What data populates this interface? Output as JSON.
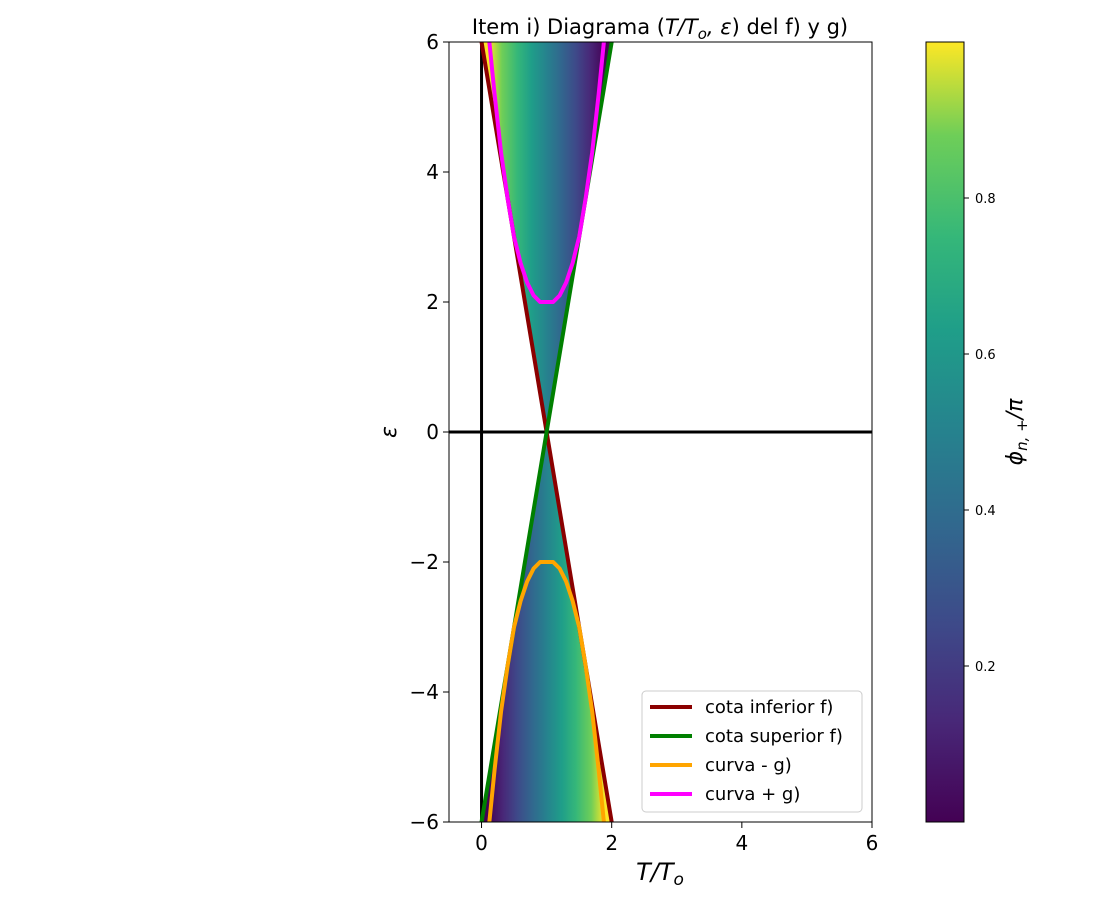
{
  "chart_data": {
    "type": "heatmap",
    "title_prefix": "Item i) Diagrama (",
    "title_math": "T/T",
    "title_sub": "o",
    "title_math2": ", ε",
    "title_suffix": ") del f) y g)",
    "xlabel": "T/T",
    "xlabel_sub": "o",
    "ylabel": "ε",
    "xlim": [
      -0.5,
      6
    ],
    "ylim": [
      -6,
      6
    ],
    "xticks": [
      0,
      2,
      4,
      6
    ],
    "xtick_labels": [
      "0",
      "2",
      "4",
      "6"
    ],
    "yticks": [
      -6,
      -4,
      -2,
      0,
      2,
      4,
      6
    ],
    "ytick_labels": [
      "−6",
      "−4",
      "−2",
      "0",
      "2",
      "4",
      "6"
    ],
    "reference_lines": {
      "x": 0,
      "y": 0
    },
    "colormap": "viridis",
    "colorbar": {
      "label": "ϕ",
      "label_sub": "n, +",
      "label_suffix": "/π",
      "range": [
        0,
        1
      ],
      "ticks": [
        0.2,
        0.4,
        0.6,
        0.8
      ],
      "tick_labels": [
        "0.2",
        "0.4",
        "0.6",
        "0.8"
      ]
    },
    "field": "phi/pi = arccos(eps/(6*(1 - T/To)))/pi between the bounds",
    "series": [
      {
        "name": "cota inferior f)",
        "color": "#8b0000",
        "x": [
          0,
          2
        ],
        "y": [
          6,
          -6
        ]
      },
      {
        "name": "cota superior f)",
        "color": "#008000",
        "x": [
          0,
          2
        ],
        "y": [
          -6,
          6
        ]
      },
      {
        "name": "curva - g)",
        "color": "#ffa500",
        "x": [
          0.12,
          0.2,
          0.3,
          0.4,
          0.5,
          0.6,
          0.7,
          0.8,
          0.9,
          1.0,
          1.1,
          1.2,
          1.3,
          1.4,
          1.5,
          1.6,
          1.7,
          1.8,
          1.88
        ],
        "y": [
          -6.0,
          -5.2,
          -4.3,
          -3.6,
          -3.0,
          -2.6,
          -2.3,
          -2.1,
          -2.0,
          -2.0,
          -2.0,
          -2.1,
          -2.3,
          -2.6,
          -3.0,
          -3.6,
          -4.3,
          -5.2,
          -6.0
        ]
      },
      {
        "name": "curva + g)",
        "color": "#ff00ff",
        "x": [
          0.12,
          0.2,
          0.3,
          0.4,
          0.5,
          0.6,
          0.7,
          0.8,
          0.9,
          1.0,
          1.1,
          1.2,
          1.3,
          1.4,
          1.5,
          1.6,
          1.7,
          1.8,
          1.88
        ],
        "y": [
          6.0,
          5.2,
          4.3,
          3.6,
          3.0,
          2.6,
          2.3,
          2.1,
          2.0,
          2.0,
          2.0,
          2.1,
          2.3,
          2.6,
          3.0,
          3.6,
          4.3,
          5.2,
          6.0
        ]
      }
    ],
    "legend_position": "lower-right"
  }
}
